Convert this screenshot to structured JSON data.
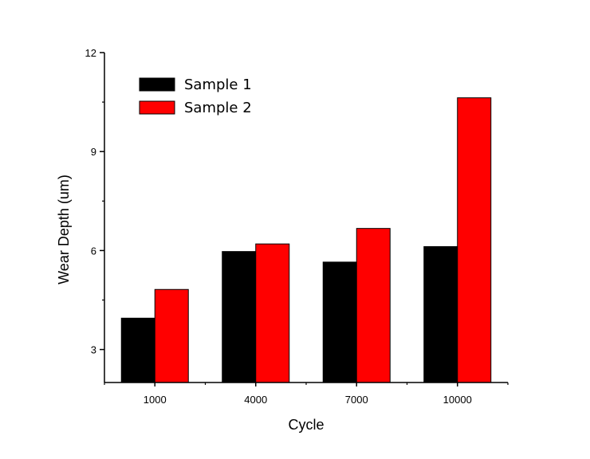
{
  "chart_data": {
    "type": "bar",
    "categories": [
      "1000",
      "4000",
      "7000",
      "10000"
    ],
    "series": [
      {
        "name": "Sample 1",
        "values": [
          3.95,
          5.97,
          5.65,
          6.12
        ],
        "color": "#000000"
      },
      {
        "name": "Sample 2",
        "values": [
          4.82,
          6.2,
          6.67,
          10.63
        ],
        "color": "#ff0000"
      }
    ],
    "xlabel": "Cycle",
    "ylabel": "Wear Depth (um)",
    "ylim": [
      2,
      12
    ],
    "yticks": [
      3,
      6,
      9,
      12
    ],
    "yticks_minor": [
      4.5,
      7.5,
      10.5
    ],
    "grid": false,
    "legend_position": "top-left"
  }
}
